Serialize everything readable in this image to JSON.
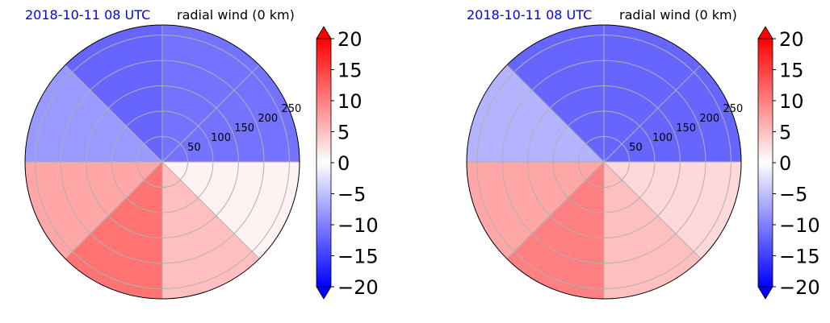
{
  "chart_data": [
    {
      "type": "polar-filled-contour",
      "panel": "left",
      "time_label": "2018-10-11 08 UTC",
      "title": "radial wind (0 km)",
      "radial_ticks": [
        50,
        100,
        150,
        200,
        250
      ],
      "r_max": 270,
      "angular_grid_deg": [
        0,
        45,
        90,
        135,
        180,
        225,
        270,
        315
      ],
      "colorbar": {
        "min": -20,
        "max": 20,
        "ticks": [
          20,
          15,
          10,
          5,
          0,
          -5,
          -10,
          -15,
          -20
        ],
        "extend": "both",
        "cmap": "bwr"
      },
      "sectors": [
        {
          "from_deg": 0,
          "to_deg": 90,
          "value": -11
        },
        {
          "from_deg": 90,
          "to_deg": 135,
          "value": -12
        },
        {
          "from_deg": 135,
          "to_deg": 180,
          "value": -8
        },
        {
          "from_deg": 180,
          "to_deg": 225,
          "value": 7
        },
        {
          "from_deg": 225,
          "to_deg": 270,
          "value": 11
        },
        {
          "from_deg": 270,
          "to_deg": 315,
          "value": 5
        },
        {
          "from_deg": 315,
          "to_deg": 360,
          "value": 1
        }
      ]
    },
    {
      "type": "polar-filled-contour",
      "panel": "right",
      "time_label": "2018-10-11 08 UTC",
      "title": "radial wind (0 km)",
      "radial_ticks": [
        50,
        100,
        150,
        200,
        250
      ],
      "r_max": 270,
      "angular_grid_deg": [
        0,
        45,
        90,
        135,
        180,
        225,
        270,
        315
      ],
      "colorbar": {
        "min": -20,
        "max": 20,
        "ticks": [
          20,
          15,
          10,
          5,
          0,
          -5,
          -10,
          -15,
          -20
        ],
        "extend": "both",
        "cmap": "bwr"
      },
      "sectors": [
        {
          "from_deg": 0,
          "to_deg": 90,
          "value": -12
        },
        {
          "from_deg": 90,
          "to_deg": 135,
          "value": -12
        },
        {
          "from_deg": 135,
          "to_deg": 180,
          "value": -6
        },
        {
          "from_deg": 180,
          "to_deg": 225,
          "value": 7
        },
        {
          "from_deg": 225,
          "to_deg": 270,
          "value": 10
        },
        {
          "from_deg": 270,
          "to_deg": 315,
          "value": 5
        },
        {
          "from_deg": 315,
          "to_deg": 360,
          "value": 3
        }
      ]
    }
  ],
  "colors": {
    "time_label": "#0000ff",
    "title": "#000000",
    "grid": "#b0b0b0"
  }
}
